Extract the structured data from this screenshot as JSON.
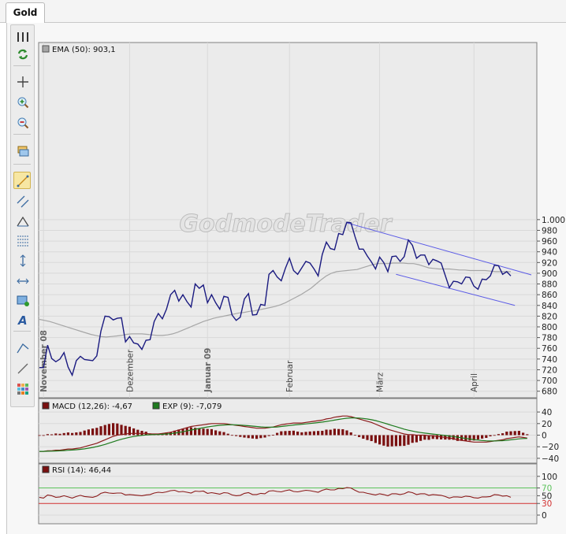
{
  "tab": {
    "label": "Gold"
  },
  "watermark": "GodmodeTrader",
  "toolbar": [
    {
      "name": "columns-icon"
    },
    {
      "name": "refresh-icon"
    },
    {
      "name": "crosshair-icon"
    },
    {
      "name": "zoom-in-icon"
    },
    {
      "name": "zoom-out-icon"
    },
    {
      "name": "layers-icon"
    },
    {
      "name": "trendline-icon",
      "active": true
    },
    {
      "name": "channel-icon"
    },
    {
      "name": "arc-icon"
    },
    {
      "name": "fibonacci-icon"
    },
    {
      "name": "vertical-line-icon"
    },
    {
      "name": "horizontal-line-icon"
    },
    {
      "name": "rectangle-icon"
    },
    {
      "name": "text-icon"
    },
    {
      "name": "angle-icon"
    },
    {
      "name": "line-icon"
    },
    {
      "name": "grid-icon"
    }
  ],
  "chart_data": [
    {
      "type": "line",
      "legend": "EMA (50): 903,1",
      "ylim": [
        680,
        1000
      ],
      "y_ticks": [
        "1.000",
        "980",
        "960",
        "940",
        "920",
        "900",
        "880",
        "860",
        "840",
        "820",
        "800",
        "780",
        "760",
        "740",
        "720",
        "700",
        "680"
      ],
      "x_labels": [
        "November 08",
        "Dezember",
        "Januar 09",
        "Februar",
        "März",
        "April"
      ],
      "x_label_index": [
        1,
        22,
        41,
        61,
        83,
        106
      ],
      "grid": true,
      "series": [
        {
          "name": "Gold",
          "color": "#1a1a80",
          "values": [
            724,
            724,
            766,
            741,
            735,
            740,
            752,
            725,
            710,
            737,
            745,
            739,
            738,
            737,
            746,
            792,
            820,
            819,
            813,
            816,
            817,
            772,
            782,
            770,
            768,
            758,
            775,
            776,
            810,
            825,
            815,
            833,
            860,
            868,
            848,
            860,
            847,
            837,
            880,
            872,
            878,
            845,
            860,
            845,
            833,
            857,
            855,
            822,
            812,
            818,
            852,
            862,
            822,
            823,
            842,
            840,
            898,
            905,
            893,
            886,
            909,
            928,
            905,
            898,
            910,
            922,
            919,
            908,
            895,
            935,
            958,
            946,
            944,
            974,
            972,
            995,
            994,
            968,
            945,
            945,
            932,
            921,
            908,
            930,
            920,
            903,
            931,
            932,
            922,
            931,
            962,
            952,
            928,
            934,
            934,
            916,
            926,
            923,
            919,
            896,
            873,
            885,
            884,
            880,
            893,
            892,
            876,
            870,
            889,
            888,
            895,
            915,
            914,
            898,
            903,
            895
          ]
        },
        {
          "name": "EMA (50)",
          "color": "#a6a6a6",
          "values": [
            814,
            812,
            810,
            807,
            804,
            801,
            798,
            795,
            792,
            789,
            786,
            784,
            782,
            781,
            782,
            783,
            784,
            786,
            787,
            787,
            787,
            786,
            785,
            784,
            784,
            785,
            787,
            790,
            794,
            798,
            802,
            806,
            810,
            813,
            816,
            818,
            820,
            822,
            824,
            826,
            827,
            829,
            830,
            832,
            834,
            836,
            838,
            841,
            845,
            850,
            855,
            860,
            866,
            872,
            880,
            888,
            895,
            900,
            903,
            904,
            905,
            906,
            907,
            910,
            913,
            916,
            918,
            918,
            918,
            919,
            919,
            919,
            918,
            918,
            916,
            913,
            910,
            909,
            908,
            908,
            908,
            907,
            906,
            906,
            905,
            905,
            905,
            905,
            904,
            903,
            903,
            903,
            903
          ]
        }
      ],
      "trend_lines": [
        {
          "x1": 75,
          "y1": 994,
          "x2": 120,
          "y2": 897
        },
        {
          "x1": 87,
          "y1": 898,
          "x2": 116,
          "y2": 840
        }
      ]
    },
    {
      "type": "bar",
      "legend_macd": "MACD (12,26): -4,67",
      "legend_exp": "EXP (9): -7,079",
      "ylim": [
        -40,
        40
      ],
      "y_ticks": [
        "40",
        "20",
        "0",
        "−20",
        "−40"
      ],
      "grid": true,
      "colors": {
        "histogram": "#7a1010",
        "macd": "#8b1a1a",
        "signal": "#1e7a1e"
      },
      "macd": [
        -28,
        -28,
        -27,
        -27,
        -26,
        -26,
        -25,
        -24,
        -24,
        -23,
        -22,
        -20,
        -18,
        -16,
        -14,
        -11,
        -8,
        -5,
        -2,
        0,
        1,
        2,
        3,
        3,
        3,
        3,
        3,
        2,
        2,
        2,
        3,
        4,
        5,
        7,
        9,
        11,
        13,
        15,
        16,
        17,
        18,
        19,
        20,
        20,
        20,
        20,
        19,
        18,
        17,
        16,
        15,
        14,
        13,
        12,
        12,
        12,
        13,
        14,
        16,
        18,
        19,
        20,
        21,
        21,
        21,
        22,
        23,
        24,
        25,
        26,
        28,
        29,
        31,
        32,
        33,
        33,
        32,
        30,
        28,
        26,
        24,
        22,
        19,
        16,
        13,
        10,
        8,
        6,
        4,
        2,
        1,
        1,
        0,
        0,
        0,
        -1,
        -1,
        -2,
        -3,
        -4,
        -5,
        -6,
        -8,
        -9,
        -10,
        -11,
        -12,
        -12,
        -12,
        -12,
        -11,
        -10,
        -9,
        -8,
        -6,
        -5,
        -4,
        -3,
        -4,
        -5
      ]
    },
    {
      "type": "line",
      "legend": "RSI (14): 46,44",
      "ylim": [
        0,
        100
      ],
      "y_ticks": [
        "100",
        "70",
        "50",
        "30",
        "0"
      ],
      "levels": [
        {
          "value": 70,
          "color": "#5cc35c"
        },
        {
          "value": 30,
          "color": "#d23030"
        }
      ],
      "grid": true,
      "values": [
        46,
        44,
        52,
        50,
        46,
        47,
        50,
        47,
        44,
        48,
        51,
        48,
        47,
        46,
        49,
        56,
        59,
        57,
        56,
        57,
        57,
        52,
        53,
        52,
        51,
        50,
        52,
        53,
        57,
        59,
        58,
        60,
        63,
        64,
        60,
        61,
        59,
        57,
        62,
        61,
        62,
        56,
        58,
        56,
        54,
        58,
        57,
        52,
        50,
        51,
        56,
        58,
        53,
        53,
        56,
        55,
        62,
        63,
        61,
        60,
        63,
        65,
        61,
        60,
        62,
        64,
        63,
        61,
        59,
        64,
        67,
        65,
        65,
        69,
        68,
        71,
        70,
        64,
        59,
        59,
        56,
        54,
        52,
        55,
        53,
        50,
        55,
        55,
        53,
        55,
        60,
        58,
        53,
        55,
        55,
        51,
        53,
        52,
        51,
        48,
        44,
        47,
        47,
        46,
        49,
        48,
        45,
        44,
        47,
        47,
        48,
        53,
        52,
        49,
        50,
        46
      ]
    }
  ]
}
